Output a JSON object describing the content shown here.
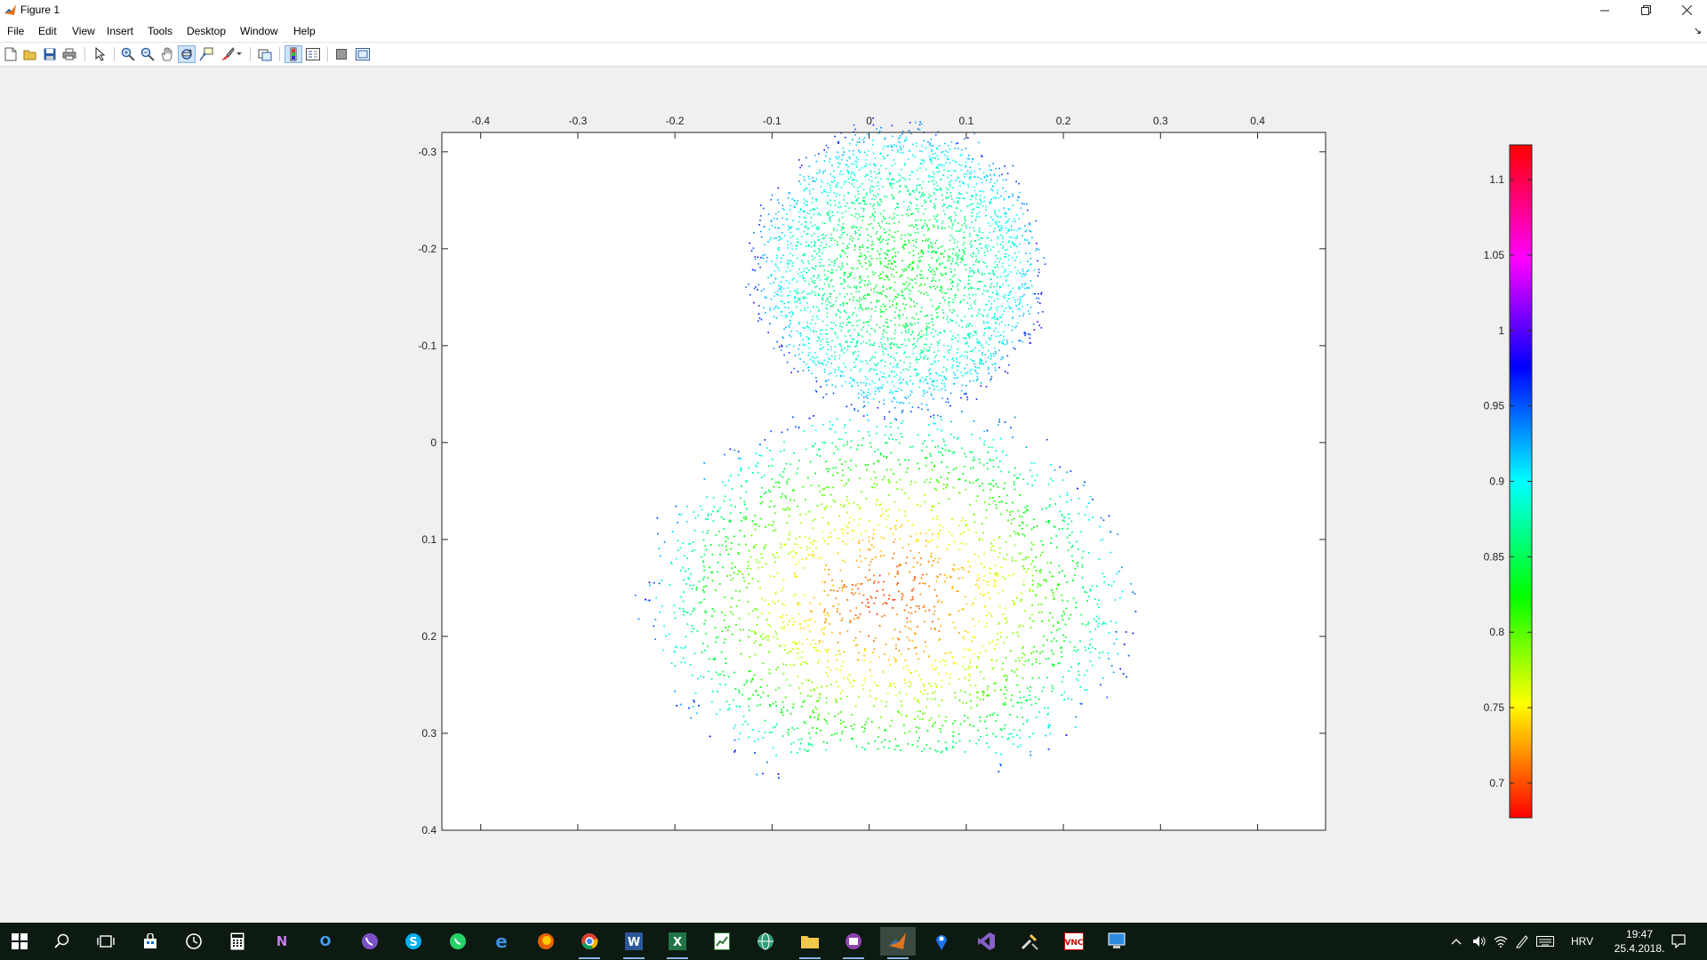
{
  "window": {
    "title": "Figure 1",
    "minimize_icon": "minimize-icon",
    "restore_icon": "restore-icon",
    "close_icon": "close-icon"
  },
  "menu": {
    "items": [
      "File",
      "Edit",
      "View",
      "Insert",
      "Tools",
      "Desktop",
      "Window",
      "Help"
    ],
    "dock_icon": "dock-arrow-icon"
  },
  "toolbar": {
    "buttons": [
      {
        "name": "new-figure-button",
        "icon": "new-file-icon"
      },
      {
        "name": "open-file-button",
        "icon": "folder-open-icon"
      },
      {
        "name": "save-figure-button",
        "icon": "save-icon"
      },
      {
        "name": "print-figure-button",
        "icon": "print-icon"
      },
      {
        "name": "edit-plot-button",
        "icon": "arrow-pointer-icon"
      },
      {
        "name": "zoom-in-button",
        "icon": "zoom-in-icon"
      },
      {
        "name": "zoom-out-button",
        "icon": "zoom-out-icon"
      },
      {
        "name": "pan-button",
        "icon": "hand-icon"
      },
      {
        "name": "rotate-3d-button",
        "icon": "rotate-3d-icon",
        "active": true
      },
      {
        "name": "data-cursor-button",
        "icon": "data-cursor-icon"
      },
      {
        "name": "brush-button",
        "icon": "brush-icon"
      },
      {
        "name": "link-plot-button",
        "icon": "link-plot-icon"
      },
      {
        "name": "insert-colorbar-button",
        "icon": "colorbar-icon",
        "active": true
      },
      {
        "name": "insert-legend-button",
        "icon": "legend-icon"
      },
      {
        "name": "hide-plot-tools-button",
        "icon": "hide-tools-icon"
      },
      {
        "name": "show-plot-tools-button",
        "icon": "show-tools-icon"
      }
    ]
  },
  "taskbar": {
    "apps": [
      {
        "name": "start-button",
        "icon": "windows-logo-icon"
      },
      {
        "name": "search-button",
        "icon": "search-icon"
      },
      {
        "name": "task-view-button",
        "icon": "task-view-icon"
      },
      {
        "name": "store-app",
        "icon": "store-icon"
      },
      {
        "name": "clock-app",
        "icon": "clock-icon"
      },
      {
        "name": "calculator-app",
        "icon": "calculator-icon"
      },
      {
        "name": "onenote-app",
        "icon": "onenote-icon"
      },
      {
        "name": "outlook-app",
        "icon": "outlook-icon"
      },
      {
        "name": "viber-app",
        "icon": "viber-icon"
      },
      {
        "name": "skype-app",
        "icon": "skype-icon"
      },
      {
        "name": "whatsapp-app",
        "icon": "whatsapp-icon"
      },
      {
        "name": "edge-app",
        "icon": "edge-icon"
      },
      {
        "name": "firefox-app",
        "icon": "firefox-icon"
      },
      {
        "name": "chrome-app",
        "icon": "chrome-icon"
      },
      {
        "name": "word-app",
        "icon": "word-icon"
      },
      {
        "name": "excel-app",
        "icon": "excel-icon"
      },
      {
        "name": "project-app",
        "icon": "project-icon"
      },
      {
        "name": "globe-app",
        "icon": "globe-icon"
      },
      {
        "name": "file-explorer-app",
        "icon": "folder-icon"
      },
      {
        "name": "media-app",
        "icon": "media-icon"
      },
      {
        "name": "matlab-app",
        "icon": "matlab-icon"
      },
      {
        "name": "maps-app",
        "icon": "maps-pin-icon"
      },
      {
        "name": "visual-studio-app",
        "icon": "visual-studio-icon"
      },
      {
        "name": "tools-app",
        "icon": "tools-icon"
      },
      {
        "name": "vnc-app",
        "icon": "vnc-icon"
      },
      {
        "name": "remote-app",
        "icon": "remote-desktop-icon"
      }
    ],
    "tray": {
      "chevron_icon": "chevron-up-icon",
      "volume_icon": "volume-icon",
      "wifi_icon": "wifi-icon",
      "pen_icon": "pen-icon",
      "keyboard_icon": "keyboard-icon",
      "language": "HRV",
      "time": "19:47",
      "date": "25.4.2018.",
      "notification_icon": "notification-icon"
    }
  },
  "colors": {
    "titlebar_bg": "#ffffff",
    "figure_bg": "#f0f0f0",
    "axes_bg": "#ffffff",
    "taskbar_bg": "#0d1a12"
  },
  "chart_data": {
    "type": "scatter",
    "colormap": "hsv",
    "x_ticks": [
      "-0.4",
      "-0.3",
      "-0.2",
      "-0.1",
      "0",
      "0.1",
      "0.2",
      "0.3",
      "0.4"
    ],
    "y_ticks": [
      "-0.3",
      "-0.2",
      "-0.1",
      "0",
      "0.1",
      "0.2",
      "0.3",
      "0.4"
    ],
    "x_axis_location": "top",
    "y_axis_direction": "reverse",
    "xlim": [
      -0.44,
      0.47
    ],
    "ylim": [
      -0.32,
      0.4
    ],
    "colorbar": {
      "ticks": [
        "1.1",
        "1.05",
        "1",
        "0.95",
        "0.9",
        "0.85",
        "0.8",
        "0.75",
        "0.7"
      ],
      "range": [
        0.677,
        1.123
      ],
      "location": "right"
    },
    "description_regions": [
      {
        "part": "head",
        "x_center": 0.03,
        "y_center": -0.18,
        "x_halfwidth": 0.15,
        "y_halfwidth": 0.15,
        "c_center": 0.83,
        "c_edge": 0.93
      },
      {
        "part": "body",
        "x_center": 0.02,
        "y_center": 0.16,
        "x_halfwidth": 0.25,
        "y_halfwidth": 0.2,
        "c_center": 0.7,
        "c_edge": 0.92
      }
    ]
  }
}
